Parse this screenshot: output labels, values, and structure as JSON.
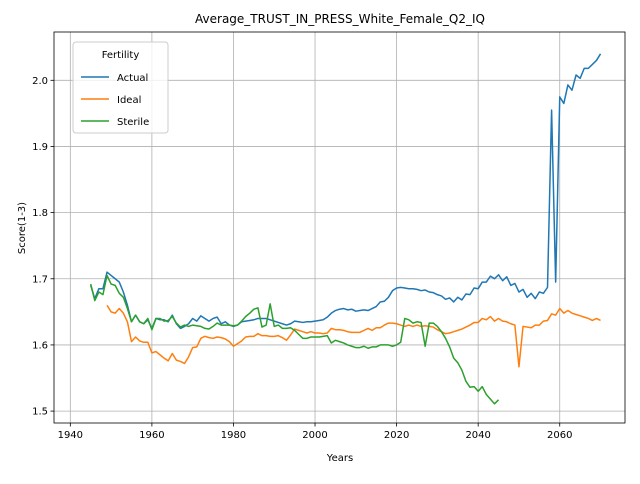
{
  "chart_data": {
    "type": "line",
    "title": "Average_TRUST_IN_PRESS_White_Female_Q2_IQ",
    "xlabel": "Years",
    "ylabel": "Score(1-3)",
    "x": [
      1945,
      1946,
      1947,
      1948,
      1949,
      1950,
      1951,
      1952,
      1953,
      1954,
      1955,
      1956,
      1957,
      1958,
      1959,
      1960,
      1961,
      1962,
      1963,
      1964,
      1965,
      1966,
      1967,
      1968,
      1969,
      1970,
      1971,
      1972,
      1973,
      1974,
      1975,
      1976,
      1977,
      1978,
      1979,
      1980,
      1981,
      1982,
      1983,
      1984,
      1985,
      1986,
      1987,
      1988,
      1989,
      1990,
      1991,
      1992,
      1993,
      1994,
      1995,
      1996,
      1997,
      1998,
      1999,
      2000,
      2001,
      2002,
      2003,
      2004,
      2005,
      2006,
      2007,
      2008,
      2009,
      2010,
      2011,
      2012,
      2013,
      2014,
      2015,
      2016,
      2017,
      2018,
      2019,
      2020,
      2021,
      2022,
      2023,
      2024,
      2025,
      2026,
      2027,
      2028,
      2029,
      2030,
      2031,
      2032,
      2033,
      2034,
      2035,
      2036,
      2037,
      2038,
      2039,
      2040,
      2041,
      2042,
      2043,
      2044,
      2045,
      2046,
      2047,
      2048,
      2049,
      2050,
      2051,
      2052,
      2053,
      2054,
      2055,
      2056,
      2057,
      2058,
      2059,
      2060,
      2061,
      2062,
      2063,
      2064,
      2065,
      2066,
      2067,
      2068,
      2069,
      2070
    ],
    "series": [
      {
        "name": "Actual",
        "color": "#1f77b4",
        "values": [
          1.69,
          1.67,
          1.685,
          1.685,
          1.71,
          1.705,
          1.7,
          1.695,
          1.68,
          1.66,
          1.635,
          1.645,
          1.635,
          1.632,
          1.638,
          1.625,
          1.64,
          1.638,
          1.638,
          1.635,
          1.645,
          1.632,
          1.625,
          1.628,
          1.632,
          1.64,
          1.636,
          1.644,
          1.64,
          1.636,
          1.64,
          1.642,
          1.632,
          1.635,
          1.63,
          1.628,
          1.63,
          1.635,
          1.636,
          1.637,
          1.638,
          1.64,
          1.64,
          1.64,
          1.638,
          1.636,
          1.634,
          1.632,
          1.63,
          1.632,
          1.636,
          1.635,
          1.634,
          1.635,
          1.635,
          1.636,
          1.637,
          1.638,
          1.642,
          1.648,
          1.652,
          1.654,
          1.655,
          1.653,
          1.654,
          1.651,
          1.652,
          1.653,
          1.652,
          1.655,
          1.658,
          1.665,
          1.666,
          1.672,
          1.682,
          1.686,
          1.687,
          1.686,
          1.685,
          1.685,
          1.684,
          1.682,
          1.683,
          1.68,
          1.679,
          1.676,
          1.674,
          1.669,
          1.671,
          1.665,
          1.672,
          1.668,
          1.677,
          1.676,
          1.686,
          1.685,
          1.695,
          1.695,
          1.704,
          1.7,
          1.706,
          1.697,
          1.703,
          1.69,
          1.693,
          1.68,
          1.684,
          1.672,
          1.678,
          1.67,
          1.68,
          1.678,
          1.687,
          1.955,
          1.695,
          1.975,
          1.965,
          1.993,
          1.985,
          2.008,
          2.003,
          2.018,
          2.018,
          2.024,
          2.03,
          2.04
        ]
      },
      {
        "name": "Ideal",
        "color": "#ff7f0e",
        "values": [
          null,
          null,
          null,
          null,
          1.66,
          1.65,
          1.648,
          1.655,
          1.648,
          1.635,
          1.605,
          1.612,
          1.606,
          1.604,
          1.604,
          1.588,
          1.59,
          1.585,
          1.58,
          1.576,
          1.587,
          1.577,
          1.575,
          1.572,
          1.582,
          1.596,
          1.597,
          1.61,
          1.613,
          1.611,
          1.61,
          1.612,
          1.611,
          1.609,
          1.605,
          1.598,
          1.602,
          1.606,
          1.612,
          1.613,
          1.613,
          1.617,
          1.614,
          1.614,
          1.613,
          1.613,
          1.614,
          1.611,
          1.607,
          1.615,
          1.624,
          1.622,
          1.62,
          1.618,
          1.62,
          1.618,
          1.618,
          1.617,
          1.618,
          1.625,
          1.623,
          1.623,
          1.622,
          1.62,
          1.619,
          1.619,
          1.619,
          1.622,
          1.625,
          1.622,
          1.626,
          1.626,
          1.63,
          1.633,
          1.633,
          1.632,
          1.63,
          1.628,
          1.63,
          1.628,
          1.63,
          1.628,
          1.629,
          1.628,
          1.627,
          1.623,
          1.62,
          1.617,
          1.618,
          1.62,
          1.622,
          1.624,
          1.627,
          1.63,
          1.634,
          1.634,
          1.64,
          1.638,
          1.643,
          1.636,
          1.64,
          1.636,
          1.635,
          1.632,
          1.63,
          1.567,
          1.628,
          1.627,
          1.626,
          1.63,
          1.63,
          1.636,
          1.637,
          1.647,
          1.645,
          1.655,
          1.648,
          1.652,
          1.648,
          1.646,
          1.644,
          1.642,
          1.64,
          1.637,
          1.64,
          1.637
        ]
      },
      {
        "name": "Sterile",
        "color": "#2ca02c",
        "values": [
          1.692,
          1.667,
          1.68,
          1.676,
          1.705,
          1.692,
          1.69,
          1.678,
          1.672,
          1.655,
          1.635,
          1.645,
          1.635,
          1.632,
          1.64,
          1.623,
          1.64,
          1.64,
          1.636,
          1.637,
          1.643,
          1.633,
          1.627,
          1.63,
          1.628,
          1.63,
          1.629,
          1.628,
          1.625,
          1.624,
          1.628,
          1.633,
          1.63,
          1.63,
          1.63,
          1.629,
          1.63,
          1.636,
          1.643,
          1.648,
          1.654,
          1.656,
          1.627,
          1.63,
          1.662,
          1.628,
          1.63,
          1.625,
          1.625,
          1.626,
          1.622,
          1.616,
          1.61,
          1.61,
          1.612,
          1.612,
          1.612,
          1.613,
          1.614,
          1.603,
          1.607,
          1.605,
          1.603,
          1.6,
          1.598,
          1.596,
          1.596,
          1.598,
          1.595,
          1.597,
          1.597,
          1.6,
          1.6,
          1.6,
          1.598,
          1.6,
          1.604,
          1.64,
          1.638,
          1.633,
          1.635,
          1.634,
          1.598,
          1.633,
          1.633,
          1.628,
          1.62,
          1.61,
          1.597,
          1.58,
          1.573,
          1.562,
          1.545,
          1.536,
          1.537,
          1.53,
          1.537,
          1.525,
          1.518,
          1.511,
          1.517,
          null,
          null,
          null,
          null,
          null,
          null,
          null,
          null,
          null,
          null,
          null,
          null,
          null,
          null,
          null,
          null,
          null,
          null,
          null,
          null,
          null,
          null,
          null,
          null,
          null
        ]
      }
    ],
    "legend_title": "Fertility",
    "legend": "upper left",
    "grid": true,
    "xlim": [
      1936,
      2076
    ],
    "xticks": [
      1940,
      1960,
      1980,
      2000,
      2020,
      2040,
      2060
    ],
    "ylim": [
      1.482,
      2.073
    ],
    "yticks": [
      1.5,
      1.6,
      1.7,
      1.8,
      1.9,
      {
        "value": 2,
        "label": "2.0"
      }
    ]
  }
}
